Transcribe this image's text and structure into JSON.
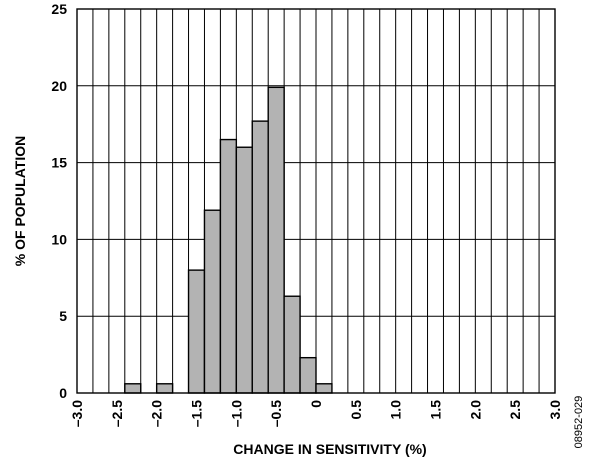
{
  "chart_data": {
    "type": "bar",
    "xlabel": "CHANGE IN SENSITIVITY (%)",
    "ylabel": "% OF POPULATION",
    "xlim": [
      -3.0,
      3.0
    ],
    "ylim": [
      0,
      25
    ],
    "grid": true,
    "bin_width": 0.2,
    "bins": [
      {
        "center": -2.3,
        "value": 0.6
      },
      {
        "center": -1.9,
        "value": 0.6
      },
      {
        "center": -1.5,
        "value": 8.0
      },
      {
        "center": -1.3,
        "value": 11.9
      },
      {
        "center": -1.1,
        "value": 16.5
      },
      {
        "center": -0.9,
        "value": 16.0
      },
      {
        "center": -0.7,
        "value": 17.7
      },
      {
        "center": -0.5,
        "value": 19.9
      },
      {
        "center": -0.3,
        "value": 6.3
      },
      {
        "center": -0.1,
        "value": 2.3
      },
      {
        "center": 0.1,
        "value": 0.6
      }
    ],
    "x_ticks": [
      "–3.0",
      "–2.5",
      "–2.0",
      "–1.5",
      "–1.0",
      "–0.5",
      "0",
      "0.5",
      "1.0",
      "1.5",
      "2.0",
      "2.5",
      "3.0"
    ],
    "y_ticks": [
      "0",
      "5",
      "10",
      "15",
      "20",
      "25"
    ],
    "bar_color": "#b3b3b3"
  },
  "figure_code": "08952-029"
}
